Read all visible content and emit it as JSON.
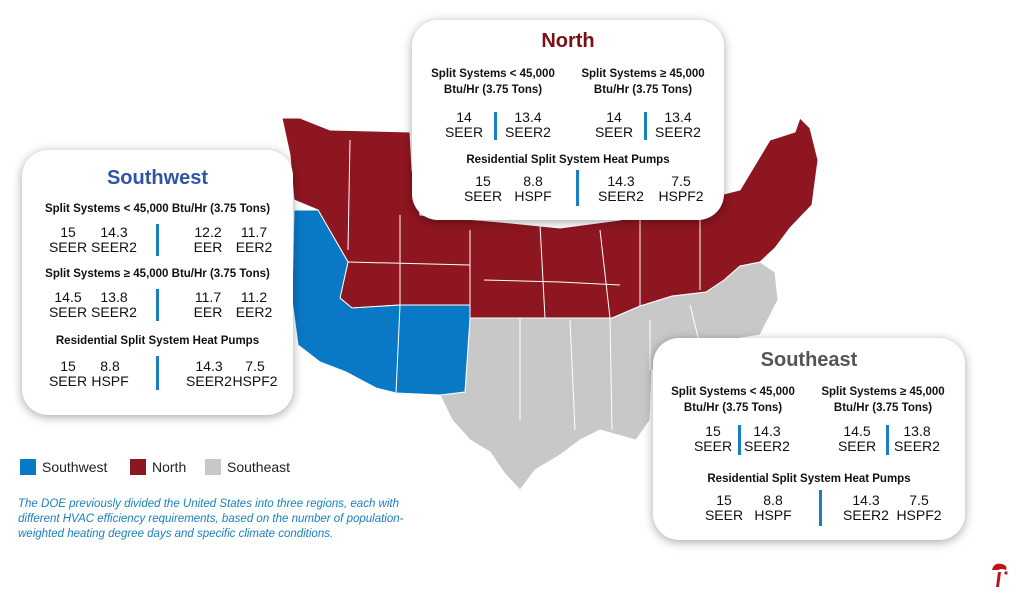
{
  "colors": {
    "southwest": "#0a79c5",
    "north": "#8e1620",
    "southeast": "#c8c8c8",
    "southwest_title": "#2f55a4",
    "north_title": "#7a0f16",
    "southeast_title": "#555555",
    "divider": "#1a7fc1"
  },
  "southwest": {
    "title": "Southwest",
    "sections": [
      {
        "header": "Split Systems < 45,000 Btu/Hr (3.75 Tons)",
        "values": [
          {
            "num": "15",
            "unit": "SEER"
          },
          {
            "num": "14.3",
            "unit": "SEER2"
          },
          {
            "num": "12.2",
            "unit": "EER"
          },
          {
            "num": "11.7",
            "unit": "EER2"
          }
        ]
      },
      {
        "header": "Split Systems ≥ 45,000 Btu/Hr (3.75 Tons)",
        "values": [
          {
            "num": "14.5",
            "unit": "SEER"
          },
          {
            "num": "13.8",
            "unit": "SEER2"
          },
          {
            "num": "11.7",
            "unit": "EER"
          },
          {
            "num": "11.2",
            "unit": "EER2"
          }
        ]
      },
      {
        "header": "Residential Split System Heat Pumps",
        "values": [
          {
            "num": "15",
            "unit": "SEER"
          },
          {
            "num": "8.8",
            "unit": "HSPF"
          },
          {
            "num": "14.3",
            "unit": "SEER2"
          },
          {
            "num": "7.5",
            "unit": "HSPF2"
          }
        ]
      }
    ]
  },
  "north": {
    "title": "North",
    "left_header": [
      "Split Systems < 45,000",
      "Btu/Hr (3.75 Tons)"
    ],
    "left_values": [
      {
        "num": "14",
        "unit": "SEER"
      },
      {
        "num": "13.4",
        "unit": "SEER2"
      }
    ],
    "right_header": [
      "Split Systems ≥ 45,000",
      "Btu/Hr (3.75 Tons)"
    ],
    "right_values": [
      {
        "num": "14",
        "unit": "SEER"
      },
      {
        "num": "13.4",
        "unit": "SEER2"
      }
    ],
    "hp_header": "Residential Split System Heat Pumps",
    "hp_values": [
      {
        "num": "15",
        "unit": "SEER"
      },
      {
        "num": "8.8",
        "unit": "HSPF"
      },
      {
        "num": "14.3",
        "unit": "SEER2"
      },
      {
        "num": "7.5",
        "unit": "HSPF2"
      }
    ]
  },
  "southeast": {
    "title": "Southeast",
    "left_header": [
      "Split Systems < 45,000",
      "Btu/Hr (3.75 Tons)"
    ],
    "left_values": [
      {
        "num": "15",
        "unit": "SEER"
      },
      {
        "num": "14.3",
        "unit": "SEER2"
      }
    ],
    "right_header": [
      "Split Systems ≥ 45,000",
      "Btu/Hr (3.75 Tons)"
    ],
    "right_values": [
      {
        "num": "14.5",
        "unit": "SEER"
      },
      {
        "num": "13.8",
        "unit": "SEER2"
      }
    ],
    "hp_header": "Residential Split System Heat Pumps",
    "hp_values": [
      {
        "num": "15",
        "unit": "SEER"
      },
      {
        "num": "8.8",
        "unit": "HSPF"
      },
      {
        "num": "14.3",
        "unit": "SEER2"
      },
      {
        "num": "7.5",
        "unit": "HSPF2"
      }
    ]
  },
  "legend": [
    {
      "label": "Southwest"
    },
    {
      "label": "North"
    },
    {
      "label": "Southeast"
    }
  ],
  "note": "The DOE previously divided the United States into three regions, each with different HVAC efficiency requirements, based on the number of population-weighted heating degree days and specific climate conditions.",
  "logo": {
    "icon": "logo-icon"
  }
}
